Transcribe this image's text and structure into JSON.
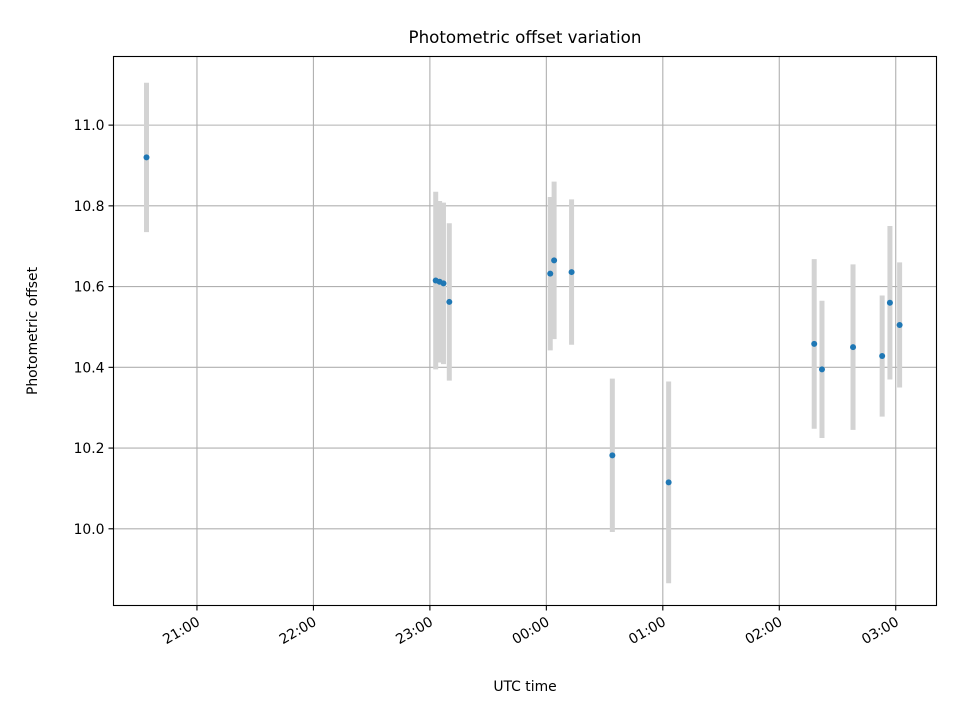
{
  "chart_data": {
    "type": "scatter",
    "title": "Photometric offset variation",
    "xlabel": "UTC time",
    "ylabel": "Photometric offset",
    "x_axis_type": "time",
    "xlim": [
      "20:17",
      "03:21"
    ],
    "ylim": [
      9.81,
      11.17
    ],
    "x_ticks": [
      "21:00",
      "22:00",
      "23:00",
      "00:00",
      "01:00",
      "02:00",
      "03:00"
    ],
    "y_ticks": [
      10.0,
      10.2,
      10.4,
      10.6,
      10.8,
      11.0
    ],
    "y_tick_labels": [
      "10.0",
      "10.2",
      "10.4",
      "10.6",
      "10.8",
      "11.0"
    ],
    "grid": true,
    "legend": "none",
    "marker_color": "#1f77b4",
    "errorbar_color": "#d3d3d3",
    "points": [
      {
        "time": "20:34",
        "y": 10.92,
        "err": 0.185
      },
      {
        "time": "23:03",
        "y": 10.615,
        "err": 0.22
      },
      {
        "time": "23:05",
        "y": 10.612,
        "err": 0.2
      },
      {
        "time": "23:07",
        "y": 10.608,
        "err": 0.2
      },
      {
        "time": "23:10",
        "y": 10.562,
        "err": 0.195
      },
      {
        "time": "00:02",
        "y": 10.632,
        "err": 0.19
      },
      {
        "time": "00:04",
        "y": 10.665,
        "err": 0.195
      },
      {
        "time": "00:13",
        "y": 10.636,
        "err": 0.18
      },
      {
        "time": "00:34",
        "y": 10.182,
        "err": 0.19
      },
      {
        "time": "01:03",
        "y": 10.115,
        "err": 0.25
      },
      {
        "time": "02:18",
        "y": 10.458,
        "err": 0.21
      },
      {
        "time": "02:22",
        "y": 10.395,
        "err": 0.17
      },
      {
        "time": "02:38",
        "y": 10.45,
        "err": 0.205
      },
      {
        "time": "02:53",
        "y": 10.428,
        "err": 0.15
      },
      {
        "time": "02:57",
        "y": 10.56,
        "err": 0.19
      },
      {
        "time": "03:02",
        "y": 10.505,
        "err": 0.155
      }
    ]
  }
}
